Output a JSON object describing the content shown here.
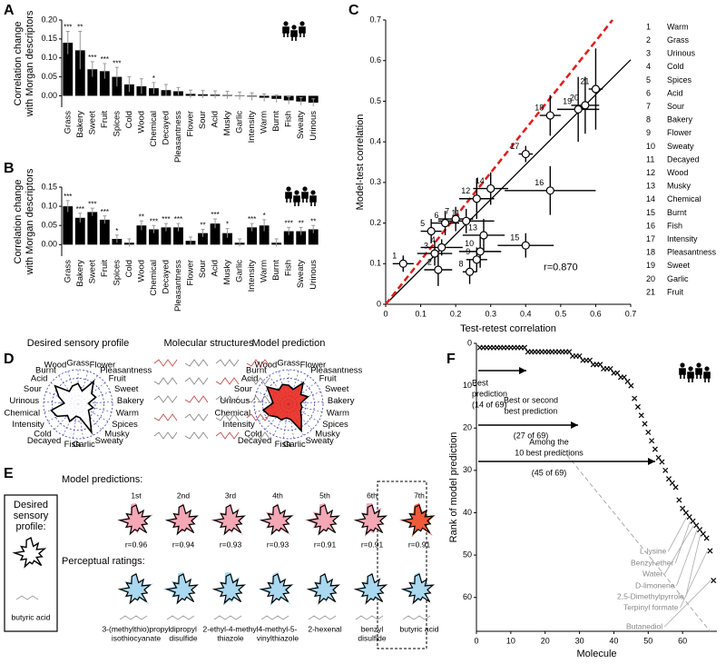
{
  "panel_labels": [
    "A",
    "B",
    "C",
    "D",
    "E",
    "F"
  ],
  "chart_data": [
    {
      "type": "bar",
      "ylabel": [
        "Correlation change",
        "with Morgan descriptors"
      ],
      "categories": [
        "Grass",
        "Bakery",
        "Sweet",
        "Fruit",
        "Spices",
        "Cold",
        "Wood",
        "Chemical",
        "Decayed",
        "Pleasantness",
        "Flower",
        "Sour",
        "Acid",
        "Musky",
        "Garlic",
        "Intensity",
        "Warm",
        "Burnt",
        "Fish",
        "Sweaty",
        "Urinous"
      ],
      "values": [
        0.14,
        0.12,
        0.07,
        0.065,
        0.05,
        0.03,
        0.025,
        0.02,
        0.015,
        0.012,
        0.005,
        0.004,
        0.003,
        0.002,
        0,
        -0.002,
        -0.005,
        -0.008,
        -0.012,
        -0.015,
        -0.018
      ],
      "errors": [
        0.03,
        0.05,
        0.02,
        0.02,
        0.025,
        0.02,
        0.02,
        0.015,
        0.015,
        0.01,
        0.01,
        0.01,
        0.01,
        0.01,
        0.01,
        0.01,
        0.01,
        0.01,
        0.01,
        0.01,
        0.01
      ],
      "stars": [
        "***",
        "**",
        "***",
        "***",
        "***",
        null,
        null,
        "*",
        null,
        null,
        null,
        null,
        null,
        null,
        null,
        null,
        null,
        null,
        null,
        null,
        null
      ],
      "color": "#000000",
      "label_colors": [
        "#2e8b3e",
        "#2e8b3e",
        "#2e8b3e",
        "#2e8b3e",
        "#2e8b3e",
        "#2e8b3e",
        "#2e8b3e",
        "#2e8b3e",
        "#2e8b3e",
        "#e0218a",
        "#2e8b3e",
        "#2e8b3e",
        "#2e8b3e",
        "#2e8b3e",
        "#2e8b3e",
        "#3a3aa8",
        "#2e8b3e",
        "#2e8b3e",
        "#2e8b3e",
        "#2e8b3e",
        "#2e8b3e"
      ],
      "ylim": [
        -0.03,
        0.2
      ],
      "yticks": [
        {
          "value": 0,
          "label": "0.00"
        },
        {
          "value": 0.05,
          "label": "0.05"
        },
        {
          "value": 0.1,
          "label": "0.10"
        },
        {
          "value": 0.15,
          "label": "0.15"
        },
        {
          "value": 0.2,
          "label": "0.20"
        }
      ]
    },
    {
      "type": "bar",
      "ylabel": [
        "Correlation change",
        "with Morgan descriptors"
      ],
      "categories": [
        "Grass",
        "Bakery",
        "Sweet",
        "Fruit",
        "Spices",
        "Cold",
        "Wood",
        "Chemical",
        "Decayed",
        "Pleasantness",
        "Flower",
        "Sour",
        "Acid",
        "Musky",
        "Garlic",
        "Intensity",
        "Warm",
        "Burnt",
        "Fish",
        "Sweaty",
        "Urinous"
      ],
      "values": [
        0.1,
        0.07,
        0.085,
        0.065,
        0.015,
        0.005,
        0.05,
        0.04,
        0.045,
        0.045,
        0.01,
        0.03,
        0.055,
        0.03,
        0.005,
        0.045,
        0.05,
        0.005,
        0.035,
        0.035,
        0.04
      ],
      "errors": [
        0.015,
        0.012,
        0.01,
        0.01,
        0.01,
        0.01,
        0.012,
        0.01,
        0.01,
        0.01,
        0.01,
        0.01,
        0.012,
        0.012,
        0.01,
        0.01,
        0.015,
        0.01,
        0.01,
        0.01,
        0.01
      ],
      "stars": [
        "***",
        "***",
        "***",
        "***",
        "*",
        null,
        "**",
        "***",
        "***",
        "***",
        null,
        "**",
        "***",
        "*",
        null,
        "***",
        "*",
        null,
        "***",
        "**",
        "**"
      ],
      "color": "#000000",
      "label_colors": [
        "#2e8b3e",
        "#2e8b3e",
        "#2e8b3e",
        "#2e8b3e",
        "#2e8b3e",
        "#2e8b3e",
        "#2e8b3e",
        "#2e8b3e",
        "#2e8b3e",
        "#e0218a",
        "#2e8b3e",
        "#2e8b3e",
        "#2e8b3e",
        "#2e8b3e",
        "#2e8b3e",
        "#3a3aa8",
        "#2e8b3e",
        "#2e8b3e",
        "#2e8b3e",
        "#2e8b3e",
        "#2e8b3e"
      ],
      "ylim": [
        -0.03,
        0.15
      ],
      "yticks": [
        {
          "value": 0,
          "label": "0.00"
        },
        {
          "value": 0.05,
          "label": "0.05"
        },
        {
          "value": 0.1,
          "label": "0.10"
        },
        {
          "value": 0.15,
          "label": "0.15"
        }
      ]
    },
    {
      "type": "scatter",
      "xlabel": "Test-retest correlation",
      "ylabel": "Model-test correlation",
      "x": [
        0.05,
        0.15,
        0.14,
        0.16,
        0.13,
        0.17,
        0.2,
        0.24,
        0.26,
        0.27,
        0.23,
        0.26,
        0.28,
        0.3,
        0.4,
        0.47,
        0.4,
        0.47,
        0.55,
        0.57,
        0.6
      ],
      "values": [
        0.1,
        0.085,
        0.125,
        0.14,
        0.18,
        0.2,
        0.21,
        0.08,
        0.11,
        0.13,
        0.205,
        0.26,
        0.17,
        0.285,
        0.145,
        0.28,
        0.37,
        0.465,
        0.48,
        0.49,
        0.53
      ],
      "xerr": [
        0.03,
        0.04,
        0.05,
        0.06,
        0.03,
        0.04,
        0.05,
        0.02,
        0.03,
        0.06,
        0.08,
        0.05,
        0.06,
        0.05,
        0.08,
        0.13,
        0.02,
        0.03,
        0.06,
        0.04,
        0.02
      ],
      "yerr": [
        0.02,
        0.04,
        0.03,
        0.02,
        0.03,
        0.03,
        0.03,
        0.03,
        0.03,
        0.04,
        0.03,
        0.05,
        0.04,
        0.04,
        0.03,
        0.06,
        0.02,
        0.05,
        0.08,
        0.07,
        0.1
      ],
      "point_labels": [
        "1",
        "2",
        "3",
        "4",
        "5",
        "6",
        "7",
        "8",
        "9",
        "10",
        "11",
        "12",
        "13",
        "14",
        "15",
        "16",
        "17",
        "18",
        "19",
        "20",
        "21"
      ],
      "names": [
        "Warm",
        "Grass",
        "Urinous",
        "Cold",
        "Spices",
        "Acid",
        "Sour",
        "Bakery",
        "Flower",
        "Sweaty",
        "Decayed",
        "Wood",
        "Musky",
        "Chemical",
        "Burnt",
        "Fish",
        "Intensity",
        "Pleasantness",
        "Sweet",
        "Garlic",
        "Fruit"
      ],
      "label_colors": [
        "#2e8b3e",
        "#2e8b3e",
        "#2e8b3e",
        "#2e8b3e",
        "#2e8b3e",
        "#2e8b3e",
        "#2e8b3e",
        "#2e8b3e",
        "#2e8b3e",
        "#2e8b3e",
        "#2e8b3e",
        "#2e8b3e",
        "#2e8b3e",
        "#2e8b3e",
        "#2e8b3e",
        "#2e8b3e",
        "#3a3aa8",
        "#e0218a",
        "#2e8b3e",
        "#2e8b3e",
        "#2e8b3e"
      ],
      "annotation": "r=0.870",
      "reference_lines": [
        {
          "slope": 0.86,
          "color": "#000000",
          "style": "solid"
        },
        {
          "slope": 1.08,
          "color": "#e41a1c",
          "style": "dashed"
        }
      ],
      "xlim": [
        0,
        0.7
      ],
      "ylim": [
        0,
        0.7
      ],
      "xticks": [
        0,
        0.1,
        0.2,
        0.3,
        0.4,
        0.5,
        0.6,
        0.7
      ],
      "yticks": [
        0,
        0.1,
        0.2,
        0.3,
        0.4,
        0.5,
        0.6,
        0.7
      ]
    },
    {
      "type": "radar",
      "title": "Desired sensory profile",
      "categories": [
        "Grass",
        "Flower",
        "Pleasantness",
        "Fruit",
        "Sweet",
        "Bakery",
        "Warm",
        "Spices",
        "Musky",
        "Sweaty",
        "Garlic",
        "Fish",
        "Decayed",
        "Cold",
        "Intensity",
        "Chemical",
        "Urinous",
        "Sour",
        "Acid",
        "Burnt",
        "Wood"
      ],
      "values": [
        60,
        40,
        80,
        50,
        55,
        30,
        45,
        35,
        50,
        90,
        40,
        35,
        55,
        45,
        70,
        80,
        40,
        60,
        85,
        45,
        55
      ],
      "color": "#ffffff",
      "rlim": [
        0,
        100
      ],
      "label_colors": [
        "#2e8b3e",
        "#2e8b3e",
        "#e0218a",
        "#2e8b3e",
        "#2e8b3e",
        "#2e8b3e",
        "#2e8b3e",
        "#2e8b3e",
        "#2e8b3e",
        "#2e8b3e",
        "#2e8b3e",
        "#2e8b3e",
        "#2e8b3e",
        "#2e8b3e",
        "#3a3aa8",
        "#2e8b3e",
        "#2e8b3e",
        "#2e8b3e",
        "#2e8b3e",
        "#2e8b3e",
        "#2e8b3e"
      ]
    },
    {
      "type": "radar",
      "title": "Model prediction",
      "categories": [
        "Grass",
        "Flower",
        "Pleasantness",
        "Fruit",
        "Sweet",
        "Bakery",
        "Warm",
        "Spices",
        "Musky",
        "Sweaty",
        "Garlic",
        "Fish",
        "Decayed",
        "Cold",
        "Intensity",
        "Chemical",
        "Urinous",
        "Sour",
        "Acid",
        "Burnt",
        "Wood"
      ],
      "values": [
        55,
        45,
        75,
        45,
        60,
        35,
        40,
        40,
        55,
        85,
        45,
        40,
        50,
        50,
        65,
        75,
        45,
        55,
        80,
        50,
        60
      ],
      "color": "#e8281e",
      "rlim": [
        0,
        100
      ],
      "label_colors": [
        "#2e8b3e",
        "#2e8b3e",
        "#e0218a",
        "#2e8b3e",
        "#2e8b3e",
        "#2e8b3e",
        "#2e8b3e",
        "#2e8b3e",
        "#2e8b3e",
        "#2e8b3e",
        "#2e8b3e",
        "#2e8b3e",
        "#2e8b3e",
        "#2e8b3e",
        "#3a3aa8",
        "#2e8b3e",
        "#2e8b3e",
        "#2e8b3e",
        "#2e8b3e",
        "#2e8b3e",
        "#2e8b3e"
      ]
    },
    {
      "type": "scatter",
      "marker": "x",
      "xlabel": "Molecule",
      "ylabel": "Rank of model prediction",
      "y_inverted": true,
      "color": "#000000",
      "x": [
        1,
        2,
        3,
        4,
        5,
        6,
        7,
        8,
        9,
        10,
        11,
        12,
        13,
        14,
        15,
        16,
        17,
        18,
        19,
        20,
        21,
        22,
        23,
        24,
        25,
        26,
        27,
        28,
        29,
        30,
        31,
        32,
        33,
        34,
        35,
        36,
        37,
        38,
        39,
        40,
        41,
        42,
        43,
        44,
        45,
        46,
        47,
        48,
        49,
        50,
        51,
        52,
        53,
        54,
        55,
        56,
        57,
        58,
        59,
        60,
        61,
        62,
        63,
        64,
        65,
        66,
        67,
        68,
        69
      ],
      "values": [
        1,
        1,
        1,
        1,
        1,
        1,
        1,
        1,
        1,
        1,
        1,
        1,
        1,
        1,
        2,
        2,
        2,
        2,
        2,
        2,
        2,
        2,
        2,
        2,
        2,
        2,
        2,
        3,
        3,
        3,
        4,
        4,
        4,
        5,
        5,
        5,
        6,
        6,
        6,
        7,
        7,
        8,
        8,
        9,
        10,
        13,
        15,
        17,
        19,
        21,
        23,
        25,
        27,
        28,
        30,
        32,
        33,
        34,
        37,
        39,
        40,
        41,
        42,
        43,
        44,
        45,
        46,
        49,
        56
      ],
      "annotations": [
        {
          "lines": [
            "Best",
            "prediction",
            "(14 of 69)"
          ]
        },
        {
          "lines": [
            "Best or second",
            "best prediction",
            "(27 of 69)"
          ]
        },
        {
          "lines": [
            "Among the",
            "10 best predictions",
            "(45 of 69)"
          ]
        }
      ],
      "point_annotations": [
        "L-lysine",
        "Benzyl ether",
        "Water",
        "D-limonene",
        "2,5-Dimethylpyrrole",
        "Terpinyl formate",
        "Butanediol"
      ],
      "reference_lines": [
        {
          "slope": 1,
          "color": "#aaaaaa",
          "style": "dashed"
        }
      ],
      "xlim": [
        0,
        70
      ],
      "ylim": [
        0,
        68
      ],
      "xticks": [
        0,
        10,
        20,
        30,
        40,
        50,
        60
      ],
      "yticks": [
        0,
        10,
        20,
        30,
        40,
        50,
        60
      ]
    }
  ],
  "panel_d": {
    "structures_title": "Molecular structures"
  },
  "panel_e": {
    "predictions_title": "Model predictions:",
    "ranks": [
      "1st",
      "2nd",
      "3rd",
      "4th",
      "5th",
      "6th",
      "7th"
    ],
    "r_labels": [
      "r=0.96",
      "r=0.94",
      "r=0.93",
      "r=0.93",
      "r=0.91",
      "r=0.91",
      "r=0.91"
    ],
    "ratings_title": "Perceptual ratings:",
    "desired_title": [
      "Desired",
      "sensory",
      "profile:"
    ],
    "desired_molecule": "butyric acid",
    "molecules": [
      [
        "3-(methylthio)propyl",
        "isothiocyanate"
      ],
      [
        "dipropyl",
        "disulfide"
      ],
      [
        "2-ethyl-4-methyl",
        "thiazole"
      ],
      [
        "4-methyl-5-",
        "vinylthiazole"
      ],
      [
        "2-hexenal"
      ],
      [
        "benzyl",
        "disulfide"
      ],
      [
        "butyric acid"
      ]
    ]
  }
}
